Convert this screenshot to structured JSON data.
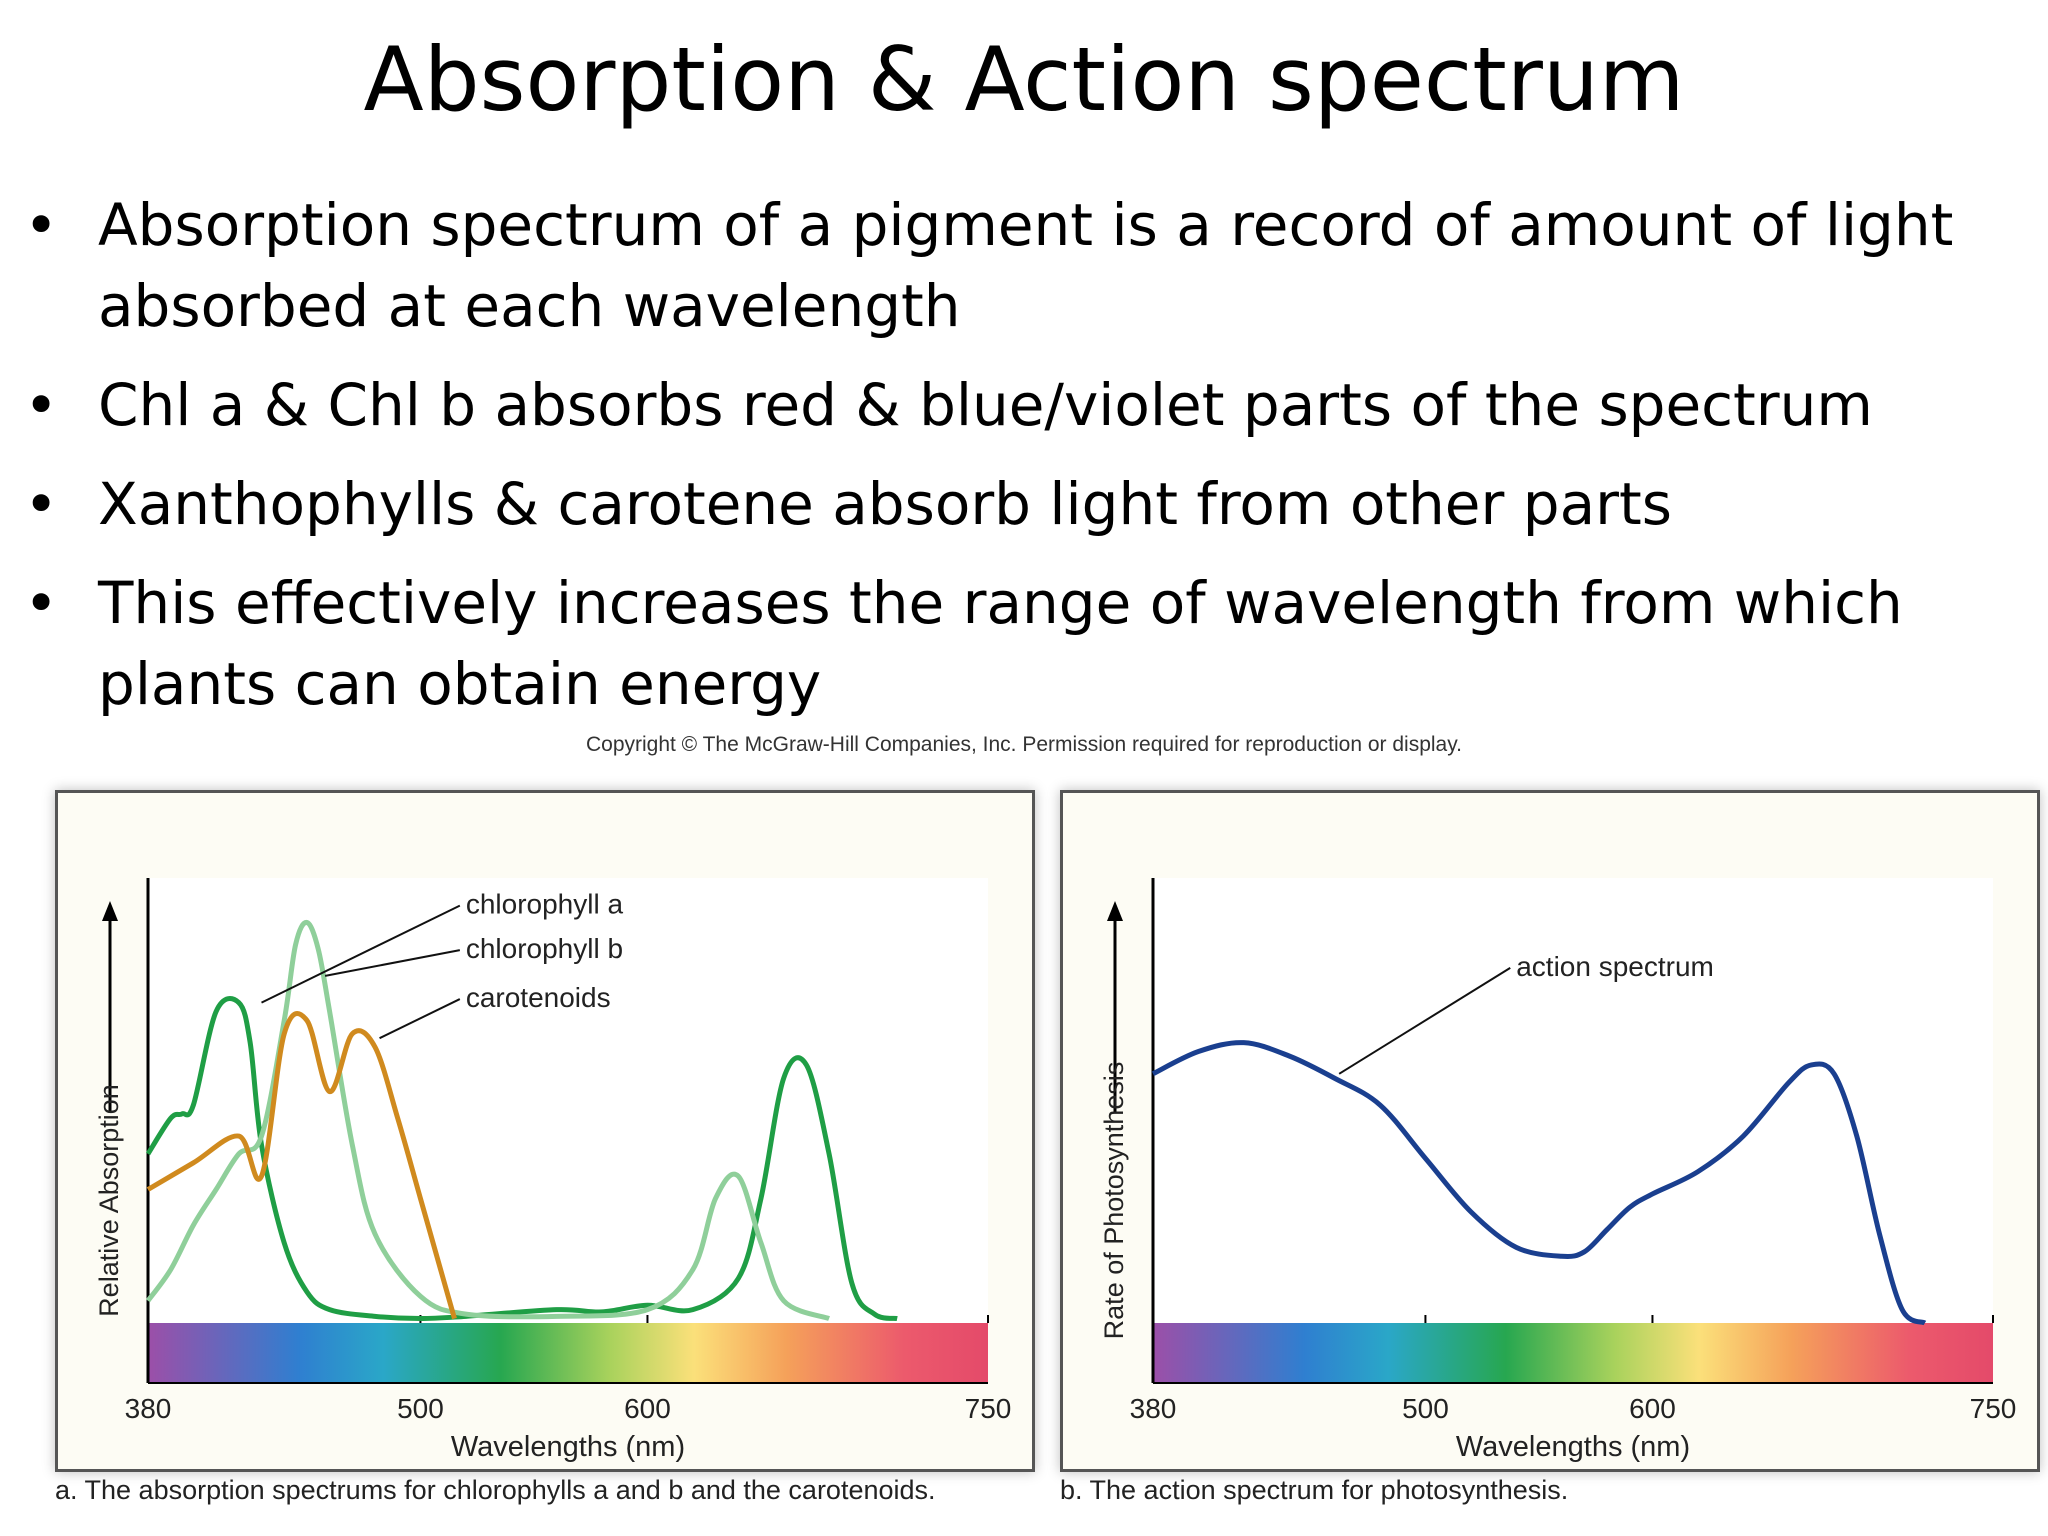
{
  "slide": {
    "title": "Absorption & Action spectrum",
    "bullets": [
      "Absorption spectrum of a pigment is a record of amount of light absorbed at each wavelength",
      "Chl a & Chl b absorbs red & blue/violet parts of the spectrum",
      "Xanthophylls & carotene absorb light from other parts",
      "This effectively increases the range of wavelength from which plants can obtain energy"
    ],
    "bullet_symbol": "•",
    "copyright": "Copyright © The McGraw-Hill Companies, Inc. Permission required for reproduction or display."
  },
  "chart_data": [
    {
      "type": "line",
      "caption": "a. The absorption spectrums for chlorophylls a and b and the carotenoids.",
      "xlabel": "Wavelengths (nm)",
      "ylabel": "Relative Absorption",
      "xticks": [
        380,
        500,
        600,
        750
      ],
      "xlim": [
        380,
        750
      ],
      "ylim": [
        0,
        100
      ],
      "spectrum_bar": true,
      "series": [
        {
          "name": "chlorophyll a",
          "color": "#1f9e45",
          "x": [
            380,
            390,
            395,
            400,
            410,
            420,
            425,
            430,
            440,
            450,
            460,
            480,
            500,
            520,
            560,
            580,
            600,
            620,
            640,
            650,
            660,
            670,
            680,
            690,
            700,
            710
          ],
          "y": [
            38,
            46,
            47,
            49,
            70,
            72,
            63,
            40,
            18,
            7,
            3,
            1.5,
            1,
            1.5,
            3,
            2.5,
            4,
            3,
            10,
            28,
            55,
            58,
            38,
            9,
            2,
            1
          ]
        },
        {
          "name": "chlorophyll b",
          "color": "#8fcf9a",
          "x": [
            380,
            390,
            400,
            410,
            420,
            430,
            440,
            445,
            450,
            455,
            460,
            470,
            480,
            500,
            520,
            560,
            600,
            620,
            630,
            640,
            650,
            660,
            680
          ],
          "y": [
            5,
            12,
            22,
            30,
            38,
            42,
            68,
            85,
            90,
            84,
            70,
            40,
            20,
            6,
            2,
            1.5,
            3,
            12,
            28,
            33,
            18,
            5,
            1
          ]
        },
        {
          "name": "carotenoids",
          "color": "#d08a1e",
          "x": [
            380,
            400,
            420,
            430,
            440,
            450,
            460,
            470,
            480,
            490,
            500,
            510,
            515
          ],
          "y": [
            30,
            36,
            42,
            33,
            65,
            68,
            52,
            65,
            62,
            46,
            28,
            10,
            1
          ]
        }
      ],
      "annotations": [
        "chlorophyll a",
        "chlorophyll b",
        "carotenoids"
      ]
    },
    {
      "type": "line",
      "caption": "b. The action spectrum for photosynthesis.",
      "xlabel": "Wavelengths (nm)",
      "ylabel": "Rate of Photosynthesis",
      "xticks": [
        380,
        500,
        600,
        750
      ],
      "xlim": [
        380,
        750
      ],
      "ylim": [
        0,
        100
      ],
      "spectrum_bar": true,
      "series": [
        {
          "name": "action spectrum",
          "color": "#1a3f8f",
          "x": [
            380,
            400,
            420,
            440,
            460,
            480,
            500,
            520,
            540,
            560,
            570,
            580,
            590,
            600,
            620,
            640,
            660,
            670,
            680,
            690,
            700,
            710,
            720
          ],
          "y": [
            56,
            61,
            63,
            60,
            55,
            49,
            37,
            25,
            17,
            15,
            16,
            21,
            26,
            29,
            34,
            42,
            54,
            58,
            56,
            42,
            20,
            3,
            0
          ]
        }
      ],
      "annotations": [
        "action spectrum"
      ]
    }
  ]
}
